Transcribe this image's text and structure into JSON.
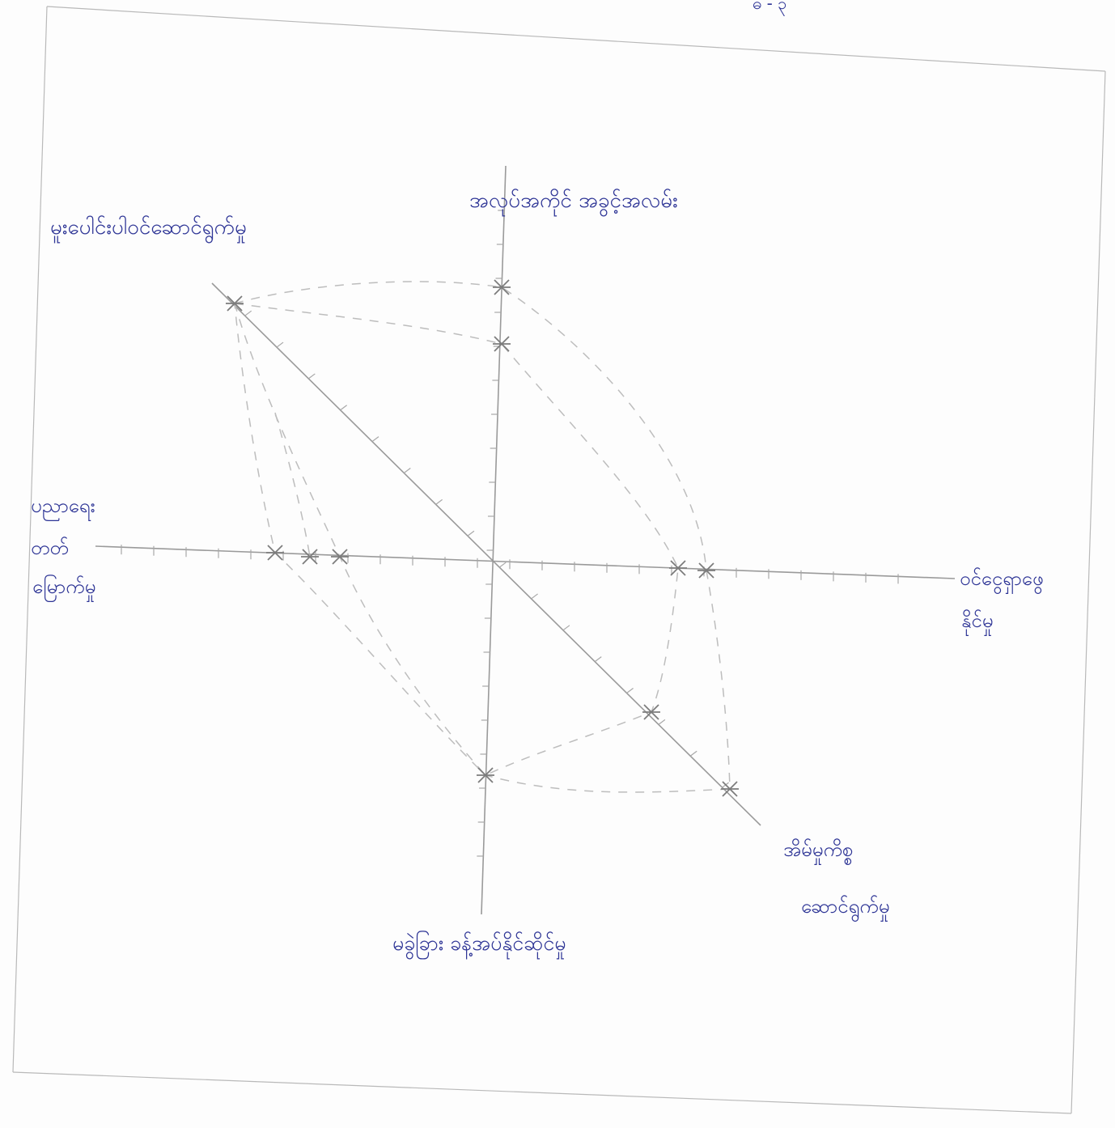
{
  "diagram": {
    "header_scrawl": "ဓ - ၃",
    "axis_labels": {
      "top": "အလုပ်အကိုင် အခွင့်အလမ်း",
      "top_left": "မူးပေါင်းပါဝင်ဆောင်ရွက်မှု",
      "left_1": "ပညာရေး",
      "left_2": "တတ်",
      "left_3": "မြောက်မှု",
      "right_1": "ဝင်ငွေရှာဖွေ",
      "right_2": "နိုင်မှု",
      "bottom_right_1": "အိမ်မှုကိစ္စ",
      "bottom_right_2": "ဆောင်ရွက်မှု",
      "bottom": "မခွဲခြား ခန့်အပ်နိုင်ဆိုင်မှု"
    },
    "colors": {
      "ink": "#2e3596",
      "pencil": "#9a9a9a",
      "dash": "#bdbdbd"
    }
  }
}
